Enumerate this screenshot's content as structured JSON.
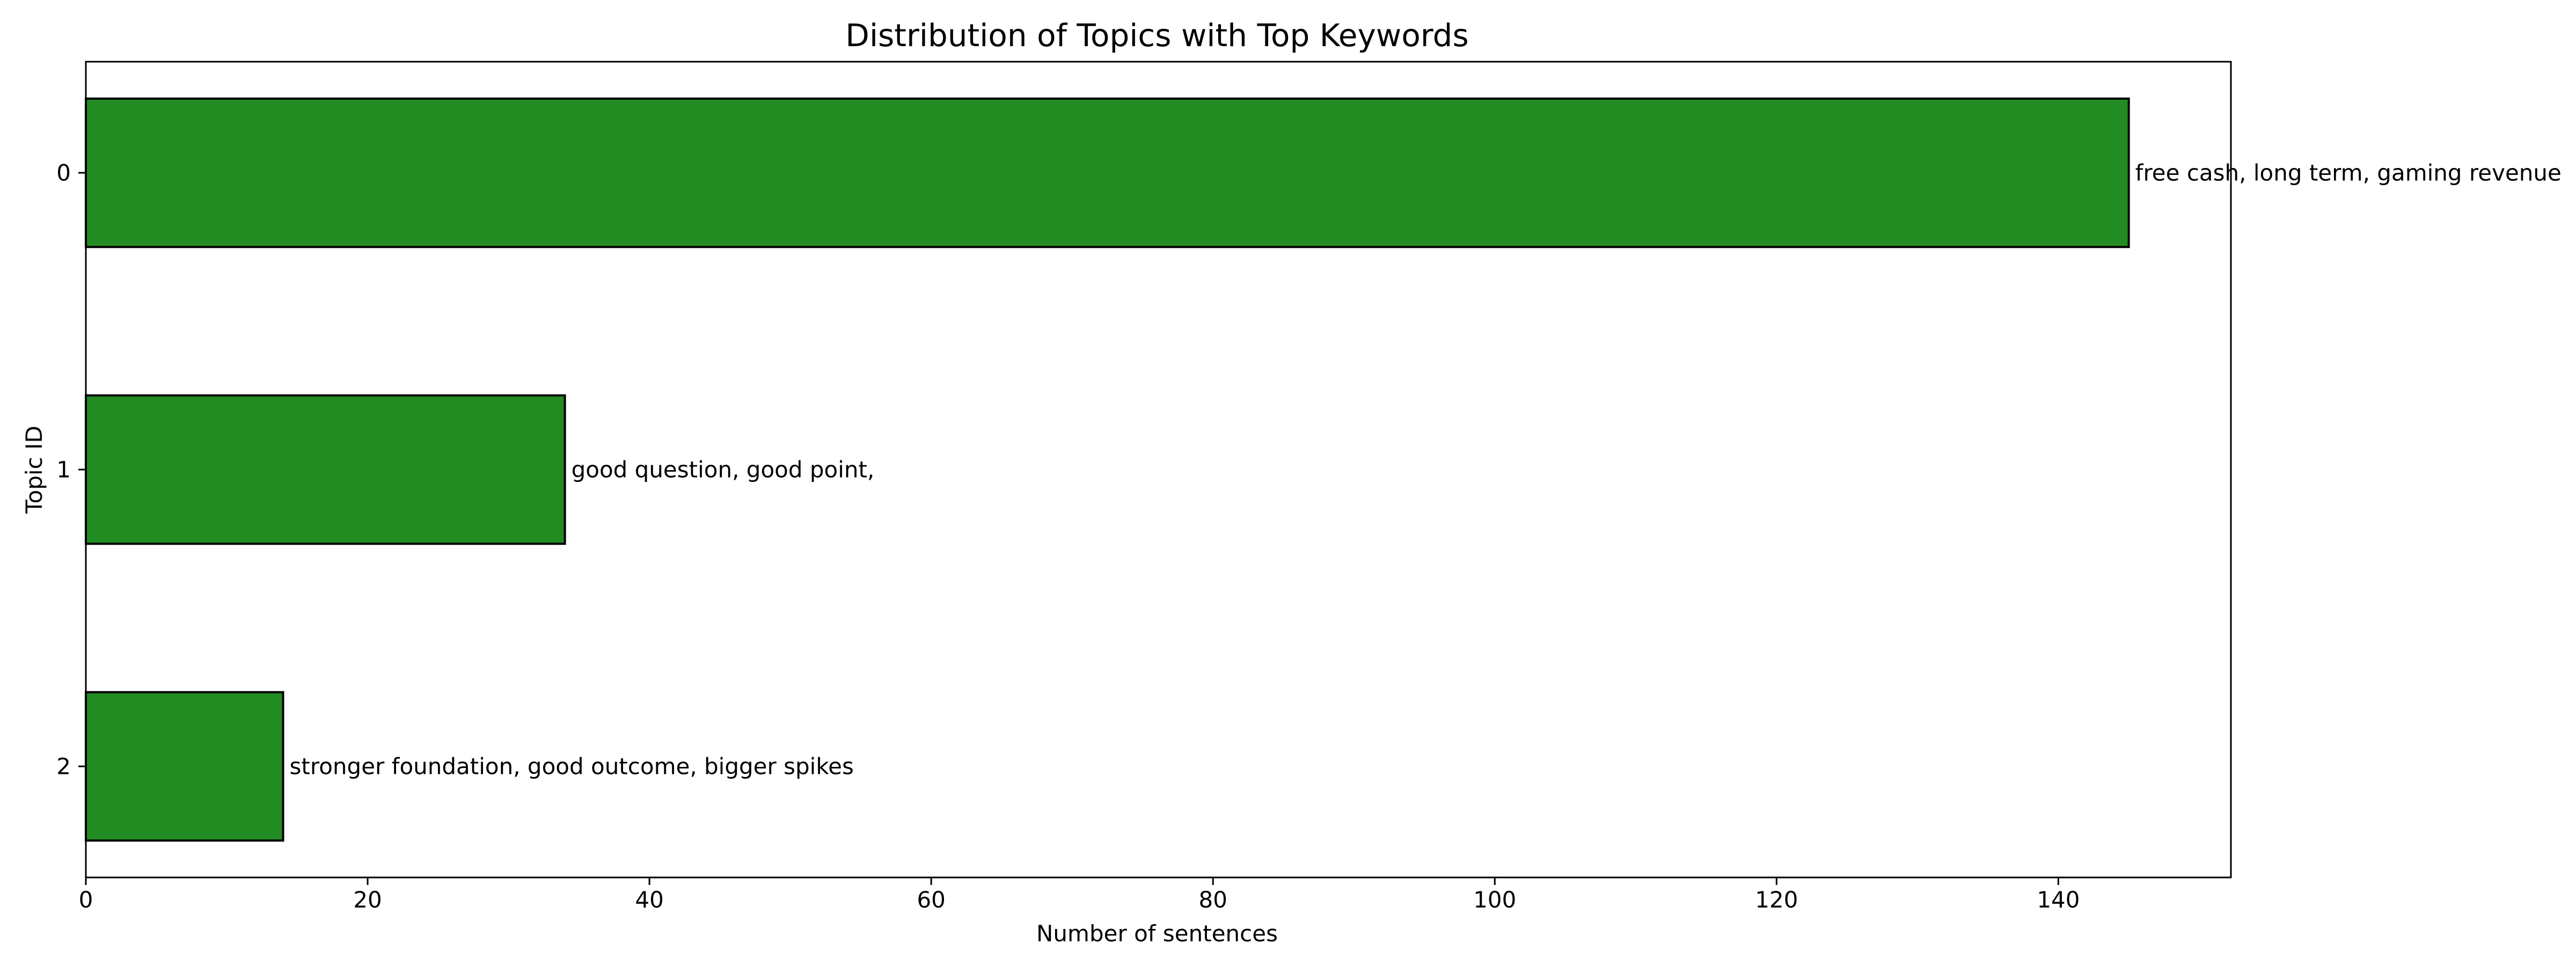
{
  "chart_data": {
    "type": "bar",
    "orientation": "horizontal",
    "title": "Distribution of Topics with Top Keywords",
    "xlabel": "Number of sentences",
    "ylabel": "Topic ID",
    "categories": [
      "0",
      "1",
      "2"
    ],
    "values": [
      145,
      34,
      14
    ],
    "annotations": [
      "free cash, long term, gaming revenue",
      "good question, good point,",
      "stronger foundation, good outcome, bigger spikes"
    ],
    "xlim": [
      0,
      152.25
    ],
    "xticks": [
      0,
      20,
      40,
      60,
      80,
      100,
      120,
      140
    ],
    "grid": false,
    "bar_color": "#228B22",
    "edge_color": "#000000"
  }
}
